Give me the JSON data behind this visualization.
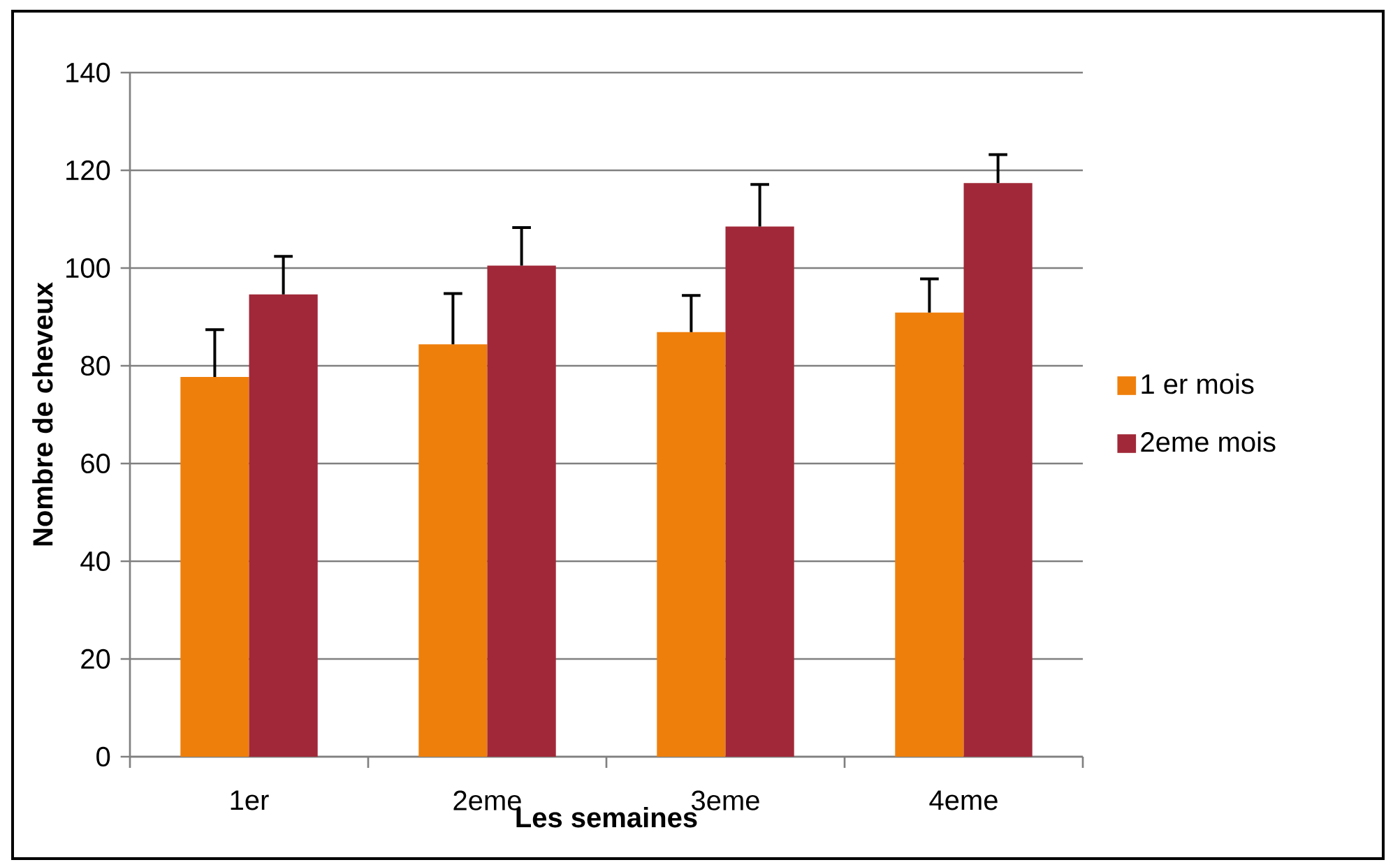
{
  "chart_data": {
    "type": "bar",
    "categories": [
      "1er",
      "2eme",
      "3eme",
      "4eme"
    ],
    "xlabel": "Les semaines",
    "ylabel": "Nombre de cheveux",
    "series": [
      {
        "name": "1 er mois",
        "color": "#ef7f0b",
        "values": [
          77.7,
          84.4,
          86.9,
          90.9
        ],
        "errors": [
          [
            77.7,
            87.4
          ],
          [
            84.4,
            94.8
          ],
          [
            86.9,
            94.4
          ],
          [
            90.9,
            97.8
          ]
        ]
      },
      {
        "name": "2eme mois",
        "color": "#a12838",
        "values": [
          94.6,
          100.5,
          108.5,
          117.4
        ],
        "errors": [
          [
            94.6,
            102.4
          ],
          [
            100.5,
            108.3
          ],
          [
            108.5,
            117.1
          ],
          [
            117.4,
            123.2
          ]
        ]
      }
    ],
    "ylim": [
      0,
      140
    ],
    "yticks": [
      0,
      20,
      40,
      60,
      80,
      100,
      120,
      140
    ],
    "grid": "y",
    "legend": "right"
  }
}
